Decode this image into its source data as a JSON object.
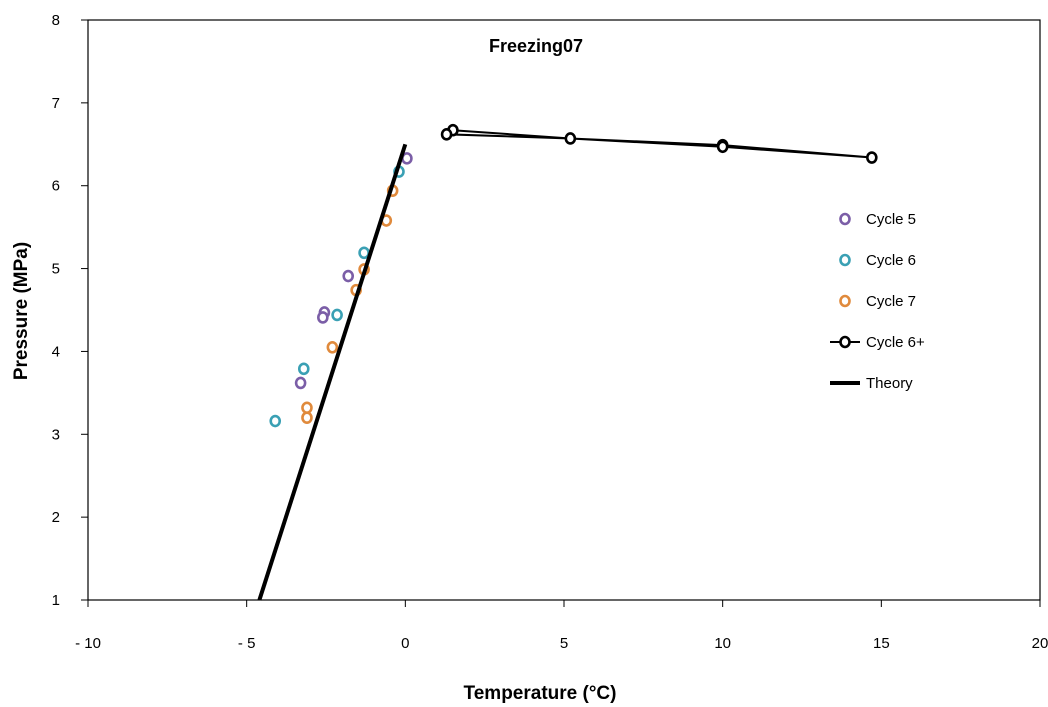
{
  "chart_data": {
    "type": "scatter",
    "title": "Freezing07",
    "xlabel": "Temperature (°C)",
    "ylabel": "Pressure (MPa)",
    "xlim": [
      -10,
      20
    ],
    "ylim": [
      1,
      8
    ],
    "x_ticks": [
      -10,
      -5,
      0,
      5,
      10,
      15,
      20
    ],
    "x_tick_labels": [
      "- 10",
      "- 5",
      "0",
      "5",
      "10",
      "15",
      "20"
    ],
    "y_ticks": [
      1,
      2,
      3,
      4,
      5,
      6,
      7,
      8
    ],
    "y_tick_labels": [
      "1",
      "2",
      "3",
      "4",
      "5",
      "6",
      "7",
      "8"
    ],
    "grid": false,
    "legend_position": "right",
    "series": [
      {
        "name": "Cycle 5",
        "kind": "markers",
        "color": "#7b5ea7",
        "points": [
          [
            0.05,
            6.33
          ],
          [
            -1.8,
            4.91
          ],
          [
            -2.55,
            4.47
          ],
          [
            -2.6,
            4.41
          ],
          [
            -3.3,
            3.62
          ]
        ]
      },
      {
        "name": "Cycle 6",
        "kind": "markers",
        "color": "#3aa0b4",
        "points": [
          [
            -0.2,
            6.17
          ],
          [
            -1.3,
            5.19
          ],
          [
            -2.15,
            4.44
          ],
          [
            -3.2,
            3.79
          ],
          [
            -4.1,
            3.16
          ]
        ]
      },
      {
        "name": "Cycle 7",
        "kind": "markers",
        "color": "#e08a3c",
        "points": [
          [
            -0.4,
            5.94
          ],
          [
            -0.6,
            5.58
          ],
          [
            -1.3,
            4.99
          ],
          [
            -1.55,
            4.74
          ],
          [
            -2.3,
            4.05
          ],
          [
            -3.1,
            3.32
          ],
          [
            -3.1,
            3.2
          ]
        ]
      },
      {
        "name": "Cycle 6+",
        "kind": "line-markers",
        "color": "#000000",
        "points": [
          [
            1.5,
            6.67
          ],
          [
            5.2,
            6.57
          ],
          [
            10.0,
            6.49
          ],
          [
            14.7,
            6.34
          ],
          [
            10.0,
            6.47
          ],
          [
            5.2,
            6.57
          ],
          [
            1.3,
            6.62
          ],
          [
            1.5,
            6.67
          ]
        ]
      },
      {
        "name": "Theory",
        "kind": "line",
        "color": "#000000",
        "points": [
          [
            -4.6,
            1.0
          ],
          [
            0.0,
            6.5
          ]
        ]
      }
    ]
  }
}
